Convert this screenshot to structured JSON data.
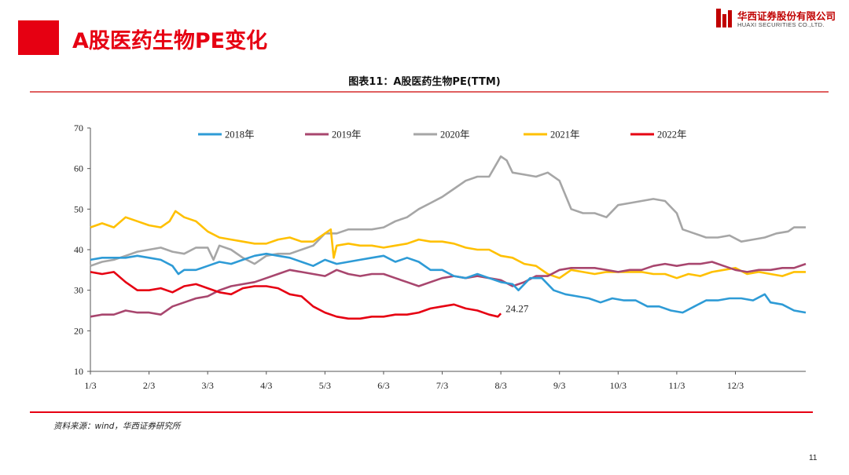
{
  "slide": {
    "title": "A股医药生物PE变化",
    "page_number": "11",
    "accent_color": "#e60012"
  },
  "logo": {
    "name_cn": "华西证券股份有限公司",
    "name_en": "HUAXI SECURITIES CO.,LTD."
  },
  "source": "资料来源：wind，华西证券研究所",
  "chart_data": {
    "type": "line",
    "title": "图表11：A股医药生物PE(TTM)",
    "xlabel": "",
    "ylabel": "",
    "ylim": [
      10,
      70
    ],
    "yticks": [
      10,
      20,
      30,
      40,
      50,
      60,
      70
    ],
    "x_domain": [
      0,
      12
    ],
    "x_ticks": [
      {
        "label": "1/3",
        "x": 0
      },
      {
        "label": "2/3",
        "x": 1
      },
      {
        "label": "3/3",
        "x": 2
      },
      {
        "label": "4/3",
        "x": 3
      },
      {
        "label": "5/3",
        "x": 4
      },
      {
        "label": "6/3",
        "x": 5
      },
      {
        "label": "7/3",
        "x": 6
      },
      {
        "label": "8/3",
        "x": 7
      },
      {
        "label": "9/3",
        "x": 8
      },
      {
        "label": "10/3",
        "x": 9
      },
      {
        "label": "11/3",
        "x": 10
      },
      {
        "label": "12/3",
        "x": 11
      }
    ],
    "legend_position": "top",
    "grid": false,
    "series": [
      {
        "name": "2018年",
        "color": "#2e9bd6",
        "points": [
          [
            0,
            37.5
          ],
          [
            0.2,
            38
          ],
          [
            0.4,
            38
          ],
          [
            0.6,
            38
          ],
          [
            0.8,
            38.5
          ],
          [
            1.0,
            38
          ],
          [
            1.2,
            37.5
          ],
          [
            1.4,
            36
          ],
          [
            1.5,
            34
          ],
          [
            1.6,
            35
          ],
          [
            1.8,
            35
          ],
          [
            2.0,
            36
          ],
          [
            2.2,
            37
          ],
          [
            2.4,
            36.5
          ],
          [
            2.6,
            37.5
          ],
          [
            2.8,
            38.5
          ],
          [
            3.0,
            39
          ],
          [
            3.2,
            38.5
          ],
          [
            3.4,
            38
          ],
          [
            3.6,
            37
          ],
          [
            3.8,
            36
          ],
          [
            4.0,
            37.5
          ],
          [
            4.2,
            36.5
          ],
          [
            4.4,
            37
          ],
          [
            4.6,
            37.5
          ],
          [
            4.8,
            38
          ],
          [
            5.0,
            38.5
          ],
          [
            5.2,
            37
          ],
          [
            5.4,
            38
          ],
          [
            5.6,
            37
          ],
          [
            5.8,
            35
          ],
          [
            6.0,
            35
          ],
          [
            6.2,
            33.5
          ],
          [
            6.4,
            33
          ],
          [
            6.6,
            34
          ],
          [
            6.8,
            33
          ],
          [
            7.0,
            32
          ],
          [
            7.2,
            31.5
          ],
          [
            7.3,
            30
          ],
          [
            7.5,
            33
          ],
          [
            7.7,
            33
          ],
          [
            7.9,
            30
          ],
          [
            8.1,
            29
          ],
          [
            8.3,
            28.5
          ],
          [
            8.5,
            28
          ],
          [
            8.7,
            27
          ],
          [
            8.9,
            28
          ],
          [
            9.1,
            27.5
          ],
          [
            9.3,
            27.5
          ],
          [
            9.5,
            26
          ],
          [
            9.7,
            26
          ],
          [
            9.9,
            25
          ],
          [
            10.1,
            24.5
          ],
          [
            10.3,
            26
          ],
          [
            10.5,
            27.5
          ],
          [
            10.7,
            27.5
          ],
          [
            10.9,
            28
          ],
          [
            11.1,
            28
          ],
          [
            11.3,
            27.5
          ],
          [
            11.5,
            29
          ],
          [
            11.6,
            27
          ],
          [
            11.8,
            26.5
          ],
          [
            12.0,
            25
          ],
          [
            12.2,
            24.5
          ]
        ]
      },
      {
        "name": "2019年",
        "color": "#a8466e",
        "points": [
          [
            0,
            23.5
          ],
          [
            0.2,
            24
          ],
          [
            0.4,
            24
          ],
          [
            0.6,
            25
          ],
          [
            0.8,
            24.5
          ],
          [
            1.0,
            24.5
          ],
          [
            1.2,
            24
          ],
          [
            1.4,
            26
          ],
          [
            1.6,
            27
          ],
          [
            1.8,
            28
          ],
          [
            2.0,
            28.5
          ],
          [
            2.2,
            30
          ],
          [
            2.4,
            31
          ],
          [
            2.6,
            31.5
          ],
          [
            2.8,
            32
          ],
          [
            3.0,
            33
          ],
          [
            3.2,
            34
          ],
          [
            3.4,
            35
          ],
          [
            3.6,
            34.5
          ],
          [
            3.8,
            34
          ],
          [
            4.0,
            33.5
          ],
          [
            4.2,
            35
          ],
          [
            4.4,
            34
          ],
          [
            4.6,
            33.5
          ],
          [
            4.8,
            34
          ],
          [
            5.0,
            34
          ],
          [
            5.2,
            33
          ],
          [
            5.4,
            32
          ],
          [
            5.6,
            31
          ],
          [
            5.8,
            32
          ],
          [
            6.0,
            33
          ],
          [
            6.2,
            33.5
          ],
          [
            6.4,
            33
          ],
          [
            6.6,
            33.5
          ],
          [
            6.8,
            33
          ],
          [
            7.0,
            32.5
          ],
          [
            7.2,
            31
          ],
          [
            7.4,
            32
          ],
          [
            7.6,
            33.5
          ],
          [
            7.8,
            33.5
          ],
          [
            8.0,
            35
          ],
          [
            8.2,
            35.5
          ],
          [
            8.4,
            35.5
          ],
          [
            8.6,
            35.5
          ],
          [
            8.8,
            35
          ],
          [
            9.0,
            34.5
          ],
          [
            9.2,
            35
          ],
          [
            9.4,
            35
          ],
          [
            9.6,
            36
          ],
          [
            9.8,
            36.5
          ],
          [
            10.0,
            36
          ],
          [
            10.2,
            36.5
          ],
          [
            10.4,
            36.5
          ],
          [
            10.6,
            37
          ],
          [
            10.8,
            36
          ],
          [
            11.0,
            35
          ],
          [
            11.2,
            34.5
          ],
          [
            11.4,
            35
          ],
          [
            11.6,
            35
          ],
          [
            11.8,
            35.5
          ],
          [
            12.0,
            35.5
          ],
          [
            12.2,
            36.5
          ]
        ]
      },
      {
        "name": "2020年",
        "color": "#a6a6a6",
        "points": [
          [
            0,
            36
          ],
          [
            0.2,
            37
          ],
          [
            0.4,
            37.5
          ],
          [
            0.6,
            38.5
          ],
          [
            0.8,
            39.5
          ],
          [
            1.0,
            40
          ],
          [
            1.2,
            40.5
          ],
          [
            1.4,
            39.5
          ],
          [
            1.6,
            39
          ],
          [
            1.8,
            40.5
          ],
          [
            2.0,
            40.5
          ],
          [
            2.1,
            37.5
          ],
          [
            2.2,
            41
          ],
          [
            2.4,
            40
          ],
          [
            2.6,
            38
          ],
          [
            2.8,
            36.5
          ],
          [
            3.0,
            38.5
          ],
          [
            3.2,
            39
          ],
          [
            3.4,
            39
          ],
          [
            3.6,
            40
          ],
          [
            3.8,
            41
          ],
          [
            4.0,
            44
          ],
          [
            4.2,
            44
          ],
          [
            4.4,
            45
          ],
          [
            4.6,
            45
          ],
          [
            4.8,
            45
          ],
          [
            5.0,
            45.5
          ],
          [
            5.2,
            47
          ],
          [
            5.4,
            48
          ],
          [
            5.6,
            50
          ],
          [
            5.8,
            51.5
          ],
          [
            6.0,
            53
          ],
          [
            6.2,
            55
          ],
          [
            6.4,
            57
          ],
          [
            6.6,
            58
          ],
          [
            6.8,
            58
          ],
          [
            7.0,
            63
          ],
          [
            7.1,
            62
          ],
          [
            7.2,
            59
          ],
          [
            7.4,
            58.5
          ],
          [
            7.6,
            58
          ],
          [
            7.8,
            59
          ],
          [
            8.0,
            57
          ],
          [
            8.2,
            50
          ],
          [
            8.4,
            49
          ],
          [
            8.6,
            49
          ],
          [
            8.8,
            48
          ],
          [
            9.0,
            51
          ],
          [
            9.2,
            51.5
          ],
          [
            9.4,
            52
          ],
          [
            9.6,
            52.5
          ],
          [
            9.8,
            52
          ],
          [
            10.0,
            49
          ],
          [
            10.1,
            45
          ],
          [
            10.3,
            44
          ],
          [
            10.5,
            43
          ],
          [
            10.7,
            43
          ],
          [
            10.9,
            43.5
          ],
          [
            11.1,
            42
          ],
          [
            11.3,
            42.5
          ],
          [
            11.5,
            43
          ],
          [
            11.7,
            44
          ],
          [
            11.9,
            44.5
          ],
          [
            12.0,
            45.5
          ],
          [
            12.2,
            45.5
          ]
        ]
      },
      {
        "name": "2021年",
        "color": "#ffc000",
        "points": [
          [
            0,
            45.5
          ],
          [
            0.2,
            46.5
          ],
          [
            0.4,
            45.5
          ],
          [
            0.6,
            48
          ],
          [
            0.8,
            47
          ],
          [
            1.0,
            46
          ],
          [
            1.2,
            45.5
          ],
          [
            1.35,
            47
          ],
          [
            1.45,
            49.5
          ],
          [
            1.6,
            48
          ],
          [
            1.8,
            47
          ],
          [
            2.0,
            44.5
          ],
          [
            2.2,
            43
          ],
          [
            2.4,
            42.5
          ],
          [
            2.6,
            42
          ],
          [
            2.8,
            41.5
          ],
          [
            3.0,
            41.5
          ],
          [
            3.2,
            42.5
          ],
          [
            3.4,
            43
          ],
          [
            3.6,
            42
          ],
          [
            3.8,
            42
          ],
          [
            4.0,
            44
          ],
          [
            4.1,
            45
          ],
          [
            4.15,
            38
          ],
          [
            4.2,
            41
          ],
          [
            4.4,
            41.5
          ],
          [
            4.6,
            41
          ],
          [
            4.8,
            41
          ],
          [
            5.0,
            40.5
          ],
          [
            5.2,
            41
          ],
          [
            5.4,
            41.5
          ],
          [
            5.6,
            42.5
          ],
          [
            5.8,
            42
          ],
          [
            6.0,
            42
          ],
          [
            6.2,
            41.5
          ],
          [
            6.4,
            40.5
          ],
          [
            6.6,
            40
          ],
          [
            6.8,
            40
          ],
          [
            7.0,
            38.5
          ],
          [
            7.2,
            38
          ],
          [
            7.4,
            36.5
          ],
          [
            7.6,
            36
          ],
          [
            7.8,
            34
          ],
          [
            8.0,
            33
          ],
          [
            8.2,
            35
          ],
          [
            8.4,
            34.5
          ],
          [
            8.6,
            34
          ],
          [
            8.8,
            34.5
          ],
          [
            9.0,
            34.5
          ],
          [
            9.2,
            34.5
          ],
          [
            9.4,
            34.5
          ],
          [
            9.6,
            34
          ],
          [
            9.8,
            34
          ],
          [
            10.0,
            33
          ],
          [
            10.2,
            34
          ],
          [
            10.4,
            33.5
          ],
          [
            10.6,
            34.5
          ],
          [
            10.8,
            35
          ],
          [
            11.0,
            35.5
          ],
          [
            11.2,
            34
          ],
          [
            11.4,
            34.5
          ],
          [
            11.6,
            34
          ],
          [
            11.8,
            33.5
          ],
          [
            12.0,
            34.5
          ],
          [
            12.2,
            34.5
          ]
        ]
      },
      {
        "name": "2022年",
        "color": "#e60012",
        "points": [
          [
            0,
            34.5
          ],
          [
            0.2,
            34
          ],
          [
            0.4,
            34.5
          ],
          [
            0.6,
            32
          ],
          [
            0.8,
            30
          ],
          [
            1.0,
            30
          ],
          [
            1.2,
            30.5
          ],
          [
            1.4,
            29.5
          ],
          [
            1.6,
            31
          ],
          [
            1.8,
            31.5
          ],
          [
            2.0,
            30.5
          ],
          [
            2.2,
            29.5
          ],
          [
            2.4,
            29
          ],
          [
            2.6,
            30.5
          ],
          [
            2.8,
            31
          ],
          [
            3.0,
            31
          ],
          [
            3.2,
            30.5
          ],
          [
            3.4,
            29
          ],
          [
            3.6,
            28.5
          ],
          [
            3.8,
            26
          ],
          [
            4.0,
            24.5
          ],
          [
            4.2,
            23.5
          ],
          [
            4.4,
            23
          ],
          [
            4.6,
            23
          ],
          [
            4.8,
            23.5
          ],
          [
            5.0,
            23.5
          ],
          [
            5.2,
            24
          ],
          [
            5.4,
            24
          ],
          [
            5.6,
            24.5
          ],
          [
            5.8,
            25.5
          ],
          [
            6.0,
            26
          ],
          [
            6.2,
            26.5
          ],
          [
            6.4,
            25.5
          ],
          [
            6.6,
            25
          ],
          [
            6.8,
            24
          ],
          [
            6.95,
            23.5
          ],
          [
            7.0,
            24.27
          ]
        ]
      }
    ],
    "annotations": [
      {
        "series": "2022年",
        "x": 7.0,
        "y": 24.27,
        "text": "24.27"
      }
    ]
  }
}
